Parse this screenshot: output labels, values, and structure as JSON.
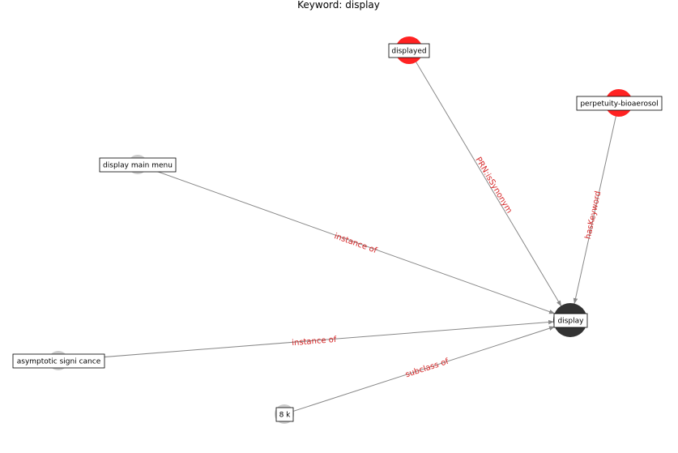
{
  "title": "Keyword: display",
  "colors": {
    "center_node": "#333333",
    "keyword_node": "#ff2222",
    "concept_node": "#cccccc",
    "edge": "#888888",
    "edge_label": "#d62728"
  },
  "nodes": [
    {
      "id": "display",
      "label": "display",
      "kind": "center"
    },
    {
      "id": "displayed",
      "label": "displayed",
      "kind": "keyword"
    },
    {
      "id": "perpetuity",
      "label": "perpetuity-bioaerosol",
      "kind": "keyword"
    },
    {
      "id": "menu",
      "label": "display main menu",
      "kind": "concept"
    },
    {
      "id": "asym",
      "label": "asymptotic signi cance",
      "kind": "concept"
    },
    {
      "id": "8k",
      "label": "8 k",
      "kind": "concept"
    }
  ],
  "edges": [
    {
      "from": "displayed",
      "to": "display",
      "label": "PRN:isSynonym"
    },
    {
      "from": "perpetuity",
      "to": "display",
      "label": "hasKeyword"
    },
    {
      "from": "menu",
      "to": "display",
      "label": "instance of"
    },
    {
      "from": "asym",
      "to": "display",
      "label": "instance of"
    },
    {
      "from": "8k",
      "to": "display",
      "label": "subclass of"
    }
  ]
}
